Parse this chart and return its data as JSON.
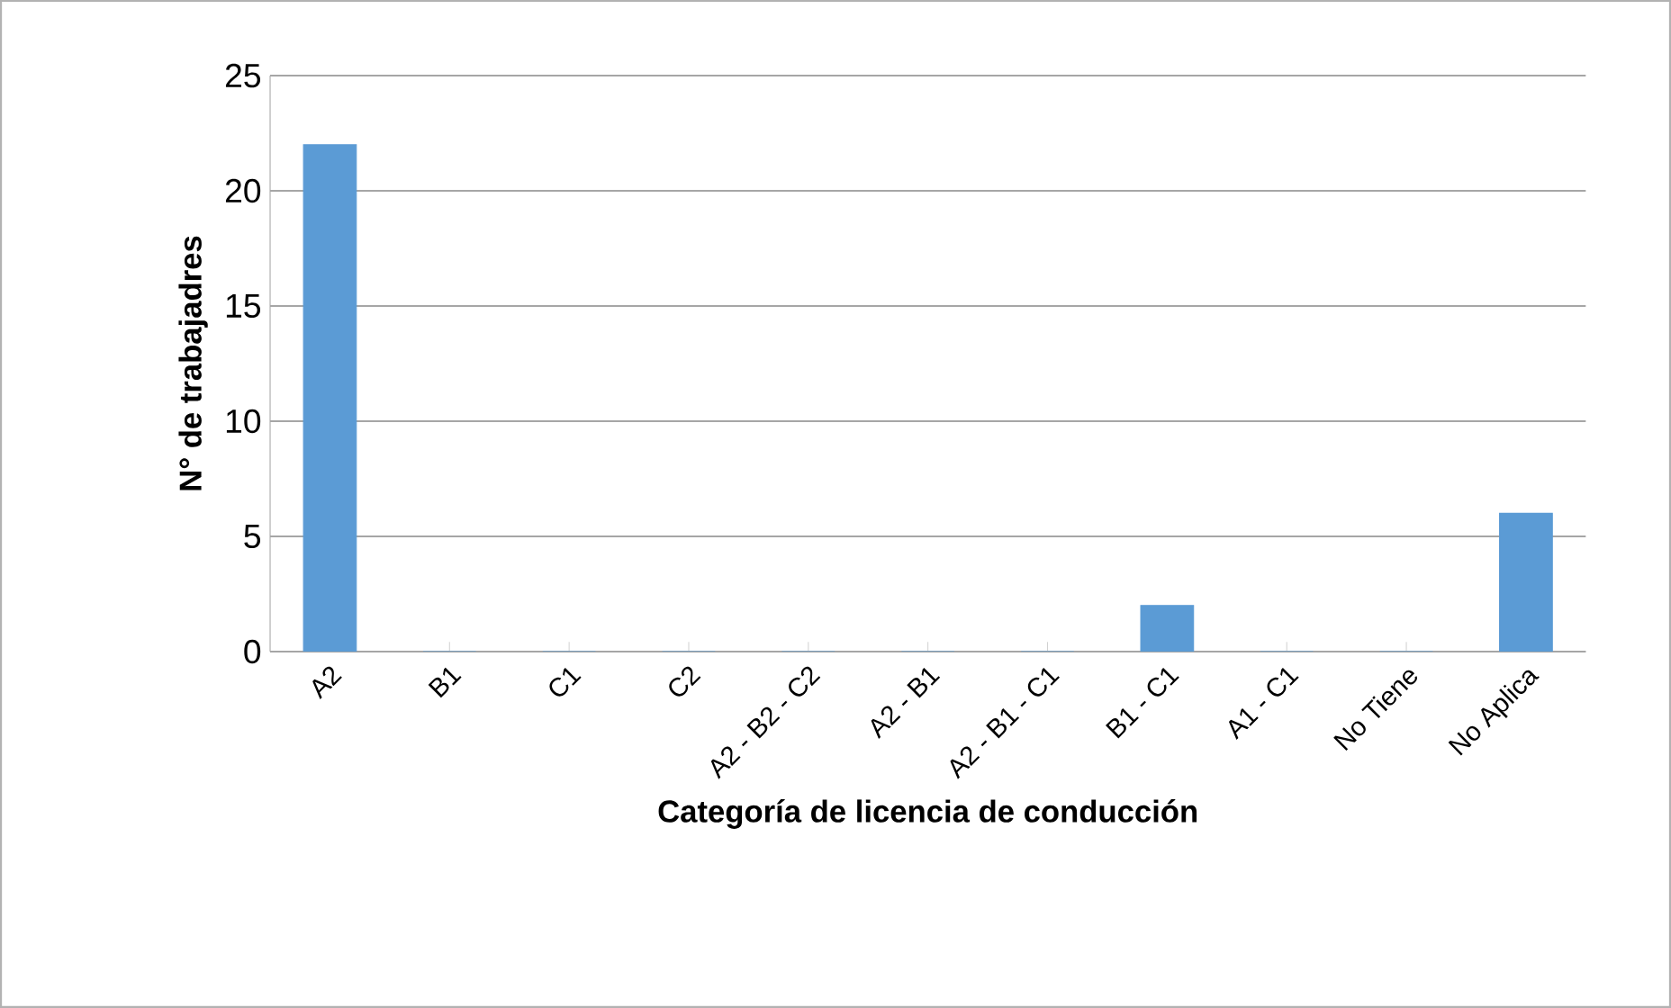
{
  "chart_data": {
    "type": "bar",
    "xlabel": "Categoría de licencia de conducción",
    "ylabel": "N° de trabajadres",
    "categories": [
      "A2",
      "B1",
      "C1",
      "C2",
      "A2 - B2 - C2",
      "A2 - B1",
      "A2 - B1 - C1",
      "B1 - C1",
      "A1 - C1",
      "No Tiene",
      "No Aplica"
    ],
    "values": [
      22,
      0,
      0,
      0,
      0,
      0,
      0,
      2,
      0,
      0,
      6
    ],
    "color": "#5b9bd5",
    "ylim": [
      0,
      25
    ],
    "yticks": [
      0,
      5,
      10,
      15,
      20,
      25
    ],
    "grid": "y"
  }
}
